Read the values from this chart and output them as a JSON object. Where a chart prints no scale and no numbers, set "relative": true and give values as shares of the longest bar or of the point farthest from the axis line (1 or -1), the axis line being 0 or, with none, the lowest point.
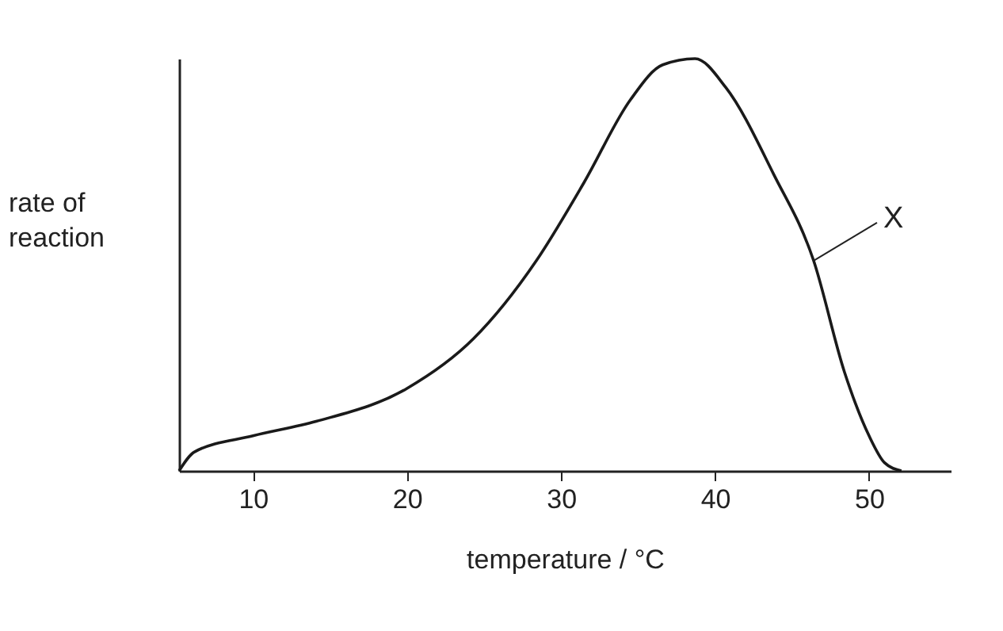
{
  "chart_data": {
    "type": "line",
    "relative": true,
    "xlabel": "temperature / °C",
    "ylabel": "rate of reaction",
    "xlim": [
      5.2,
      55.3
    ],
    "xticks": [
      10,
      20,
      30,
      40,
      50
    ],
    "grid": false,
    "marker": "none",
    "line_style": "solid",
    "annotations": [
      {
        "text": "X",
        "x": 46.4,
        "y": 0.51
      }
    ],
    "series": [
      {
        "color": "#1a1a1a",
        "x": [
          5.2,
          6.2,
          10,
          14.1,
          20,
          24.3,
          28.4,
          31.5,
          34.5,
          36.6,
          38.7,
          40.7,
          43.8,
          46.4,
          48.4,
          50,
          51,
          52.1
        ],
        "values": [
          0,
          0.046,
          0.085,
          0.12,
          0.2,
          0.32,
          0.51,
          0.7,
          0.9,
          0.985,
          1,
          0.93,
          0.72,
          0.51,
          0.24,
          0.085,
          0.02,
          0
        ]
      }
    ]
  }
}
